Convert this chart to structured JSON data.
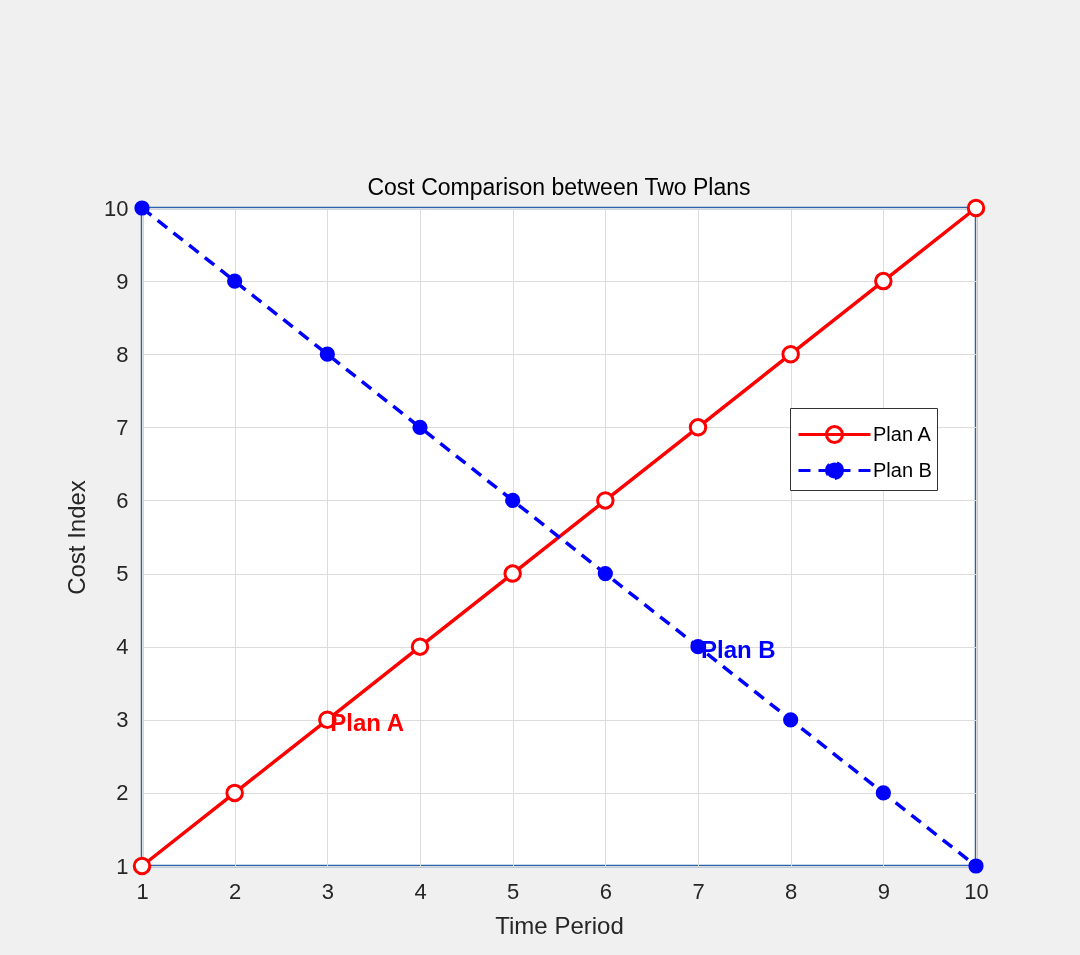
{
  "chart_data": {
    "type": "line",
    "title": "Cost Comparison between Two Plans",
    "xlabel": "Time Period",
    "ylabel": "Cost Index",
    "x": [
      1,
      2,
      3,
      4,
      5,
      6,
      7,
      8,
      9,
      10
    ],
    "series": [
      {
        "name": "Plan A",
        "color": "#ff0000",
        "line_style": "solid",
        "values": [
          1,
          2,
          3,
          4,
          5,
          6,
          7,
          8,
          9,
          10
        ]
      },
      {
        "name": "Plan B",
        "color": "#0000ff",
        "line_style": "dashed",
        "values": [
          10,
          9,
          8,
          7,
          6,
          5,
          4,
          3,
          2,
          1
        ]
      }
    ],
    "xlim": [
      1,
      10
    ],
    "ylim": [
      1,
      10
    ],
    "xticks": [
      1,
      2,
      3,
      4,
      5,
      6,
      7,
      8,
      9,
      10
    ],
    "yticks": [
      1,
      2,
      3,
      4,
      5,
      6,
      7,
      8,
      9,
      10
    ],
    "grid": true,
    "legend": "right",
    "marker": "circle",
    "annotations": [
      {
        "text": "Plan A",
        "x": 3,
        "y": 3
      },
      {
        "text": "Plan B",
        "x": 7,
        "y": 4
      }
    ]
  }
}
